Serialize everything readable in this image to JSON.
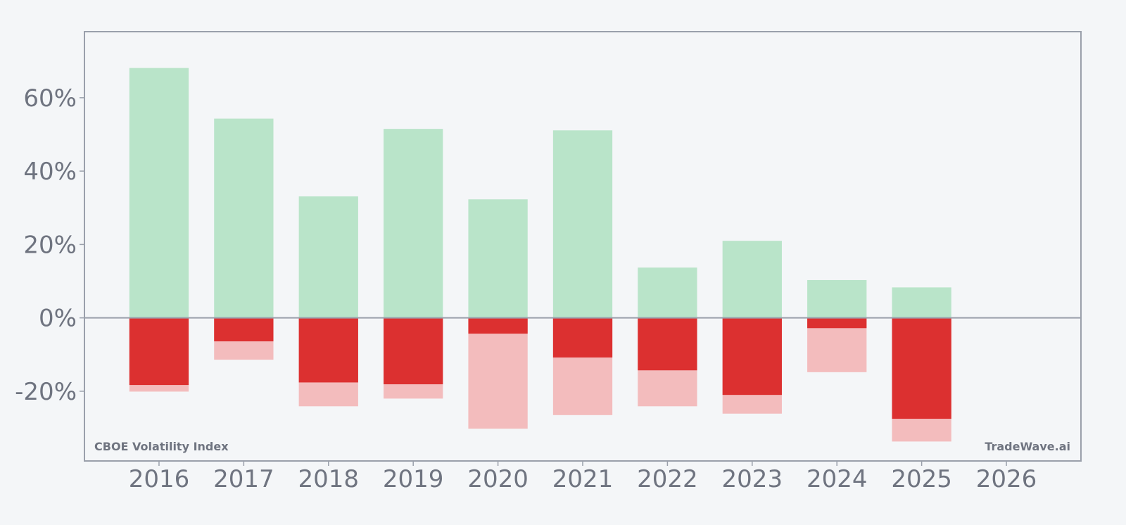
{
  "chart_data": {
    "type": "bar",
    "categories": [
      "2016",
      "2017",
      "2018",
      "2019",
      "2020",
      "2021",
      "2022",
      "2023",
      "2024",
      "2025",
      "2026"
    ],
    "series": [
      {
        "key": "max_up",
        "values": [
          68.1,
          54.3,
          33.1,
          51.5,
          32.3,
          51.1,
          13.7,
          21.0,
          10.3,
          8.3,
          null
        ]
      },
      {
        "key": "max_down",
        "values": [
          -20.1,
          -11.4,
          -24.1,
          -22.0,
          -30.2,
          -26.5,
          -24.1,
          -26.1,
          -14.8,
          -33.7,
          null
        ]
      },
      {
        "key": "close",
        "values": [
          -18.3,
          -6.4,
          -17.6,
          -18.1,
          -4.3,
          -10.8,
          -14.3,
          -21.0,
          -2.8,
          -27.5,
          null
        ]
      }
    ],
    "yticks": [
      "60%",
      "40%",
      "20%",
      "0%",
      "-20%"
    ],
    "ytick_values": [
      60,
      40,
      20,
      0,
      -20
    ],
    "ylim": [
      -39,
      78
    ],
    "xlim": [
      2015.12,
      2026.88
    ],
    "grid": false,
    "annotations": {
      "left": "CBOE Volatility Index",
      "right": "TradeWave.ai"
    },
    "colors": {
      "positive": "#b9e4c9",
      "negative_light": "#f3bcbd",
      "negative": "#dc3030",
      "axis": "#9aa0ab",
      "text": "#6f7480",
      "background": "#f4f6f8"
    }
  }
}
